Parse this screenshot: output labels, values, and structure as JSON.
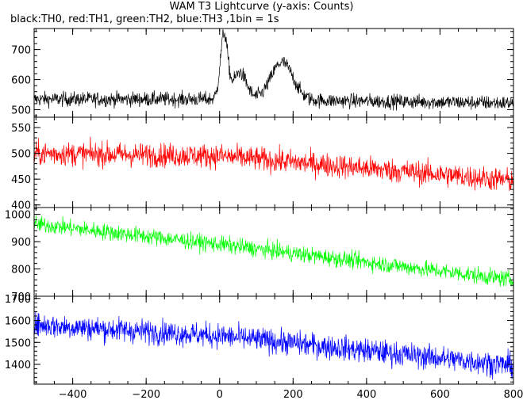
{
  "chart_data": {
    "type": "line",
    "title": "WAM T3 Lightcurve (y-axis: Counts)",
    "subtitle": "black:TH0, red:TH1, green:TH2, blue:TH3 ,1bin = 1s",
    "xlabel": "",
    "ylabel": "",
    "xlim": [
      -505,
      800
    ],
    "x_ticks": [
      -400,
      -200,
      0,
      200,
      400,
      600,
      800
    ],
    "x_tick_labels": [
      "−400",
      "−200",
      "0",
      "200",
      "400",
      "600",
      "800"
    ],
    "bin_seconds": 1,
    "panels": [
      {
        "name": "TH0",
        "color": "#000000",
        "ylim": [
          475,
          770
        ],
        "y_ticks": [
          500,
          600,
          700
        ],
        "baseline": [
          [
            -505,
            535
          ],
          [
            0,
            535
          ],
          [
            800,
            522
          ]
        ],
        "noise_amplitude": 24,
        "features": [
          {
            "center": 12,
            "width": 10,
            "peak": 215
          },
          {
            "center": 55,
            "width": 18,
            "peak": 90
          },
          {
            "center": 170,
            "width": 30,
            "peak": 125
          }
        ]
      },
      {
        "name": "TH1",
        "color": "#ff0000",
        "ylim": [
          395,
          570
        ],
        "y_ticks": [
          400,
          450,
          500,
          550
        ],
        "baseline": [
          [
            -505,
            500
          ],
          [
            0,
            495
          ],
          [
            800,
            447
          ]
        ],
        "noise_amplitude": 23,
        "features": []
      },
      {
        "name": "TH2",
        "color": "#00ff00",
        "ylim": [
          700,
          1025
        ],
        "y_ticks": [
          700,
          800,
          900,
          1000
        ],
        "baseline": [
          [
            -505,
            965
          ],
          [
            0,
            890
          ],
          [
            800,
            760
          ]
        ],
        "noise_amplitude": 30,
        "features": []
      },
      {
        "name": "TH3",
        "color": "#0000ff",
        "ylim": [
          1310,
          1710
        ],
        "y_ticks": [
          1400,
          1500,
          1600,
          1700
        ],
        "baseline": [
          [
            -505,
            1580
          ],
          [
            0,
            1530
          ],
          [
            800,
            1395
          ]
        ],
        "noise_amplitude": 55,
        "features": []
      }
    ]
  }
}
